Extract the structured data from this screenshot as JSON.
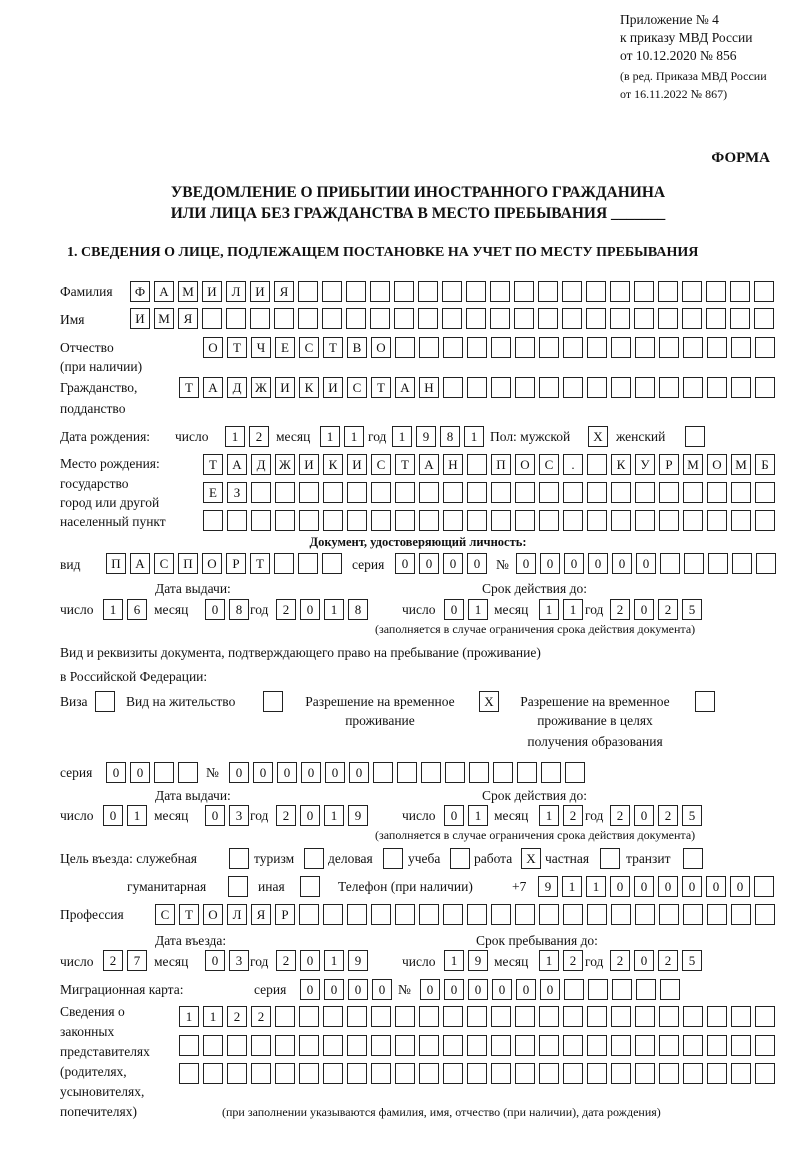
{
  "header": {
    "appendix_line1": "Приложение № 4",
    "appendix_line2": "к приказу МВД России",
    "appendix_line3": "от 10.12.2020 № 856",
    "edition_line1": "(в ред. Приказа МВД России",
    "edition_line2": "от 16.11.2022 № 867)",
    "form_label": "ФОРМА",
    "title_line1": "УВЕДОМЛЕНИЕ О ПРИБЫТИИ ИНОСТРАННОГО ГРАЖДАНИНА",
    "title_line2": "ИЛИ ЛИЦА БЕЗ ГРАЖДАНСТВА В МЕСТО ПРЕБЫВАНИЯ _______",
    "section1_title": "1. СВЕДЕНИЯ О ЛИЦЕ, ПОДЛЕЖАЩЕМ ПОСТАНОВКЕ НА УЧЕТ ПО МЕСТУ ПРЕБЫВАНИЯ"
  },
  "labels": {
    "surname": "Фамилия",
    "name": "Имя",
    "patronymic1": "Отчество",
    "patronymic2": "(при наличии)",
    "citizenship1": "Гражданство,",
    "citizenship2": "подданство",
    "birth_date": "Дата рождения:",
    "day": "число",
    "month": "месяц",
    "year": "год",
    "sex": "Пол: мужской",
    "female": "женский",
    "birthplace1": "Место рождения:",
    "birthplace2": "государство",
    "birthplace3": "город или другой",
    "birthplace4": "населенный пункт",
    "id_doc_heading": "Документ, удостоверяющий личность:",
    "kind": "вид",
    "series": "серия",
    "number": "№",
    "issue_date": "Дата выдачи:",
    "valid_until": "Срок действия до:",
    "validity_note": "(заполняется в случае ограничения срока действия документа)",
    "stay_doc1": "Вид и реквизиты документа, подтверждающего право на пребывание (проживание)",
    "stay_doc2": "в Российской Федерации:",
    "visa": "Виза",
    "residence": "Вид на жительство",
    "trp1": "Разрешение на временное",
    "trp2": "проживание",
    "trp_edu1": "Разрешение на временное",
    "trp_edu2": "проживание в целях",
    "trp_edu3": "получения образования",
    "purpose": "Цель въезда: служебная",
    "tourism": "туризм",
    "business": "деловая",
    "study": "учеба",
    "work": "работа",
    "private": "частная",
    "transit": "транзит",
    "humanitarian": "гуманитарная",
    "other": "иная",
    "phone": "Телефон (при наличии)",
    "phone_prefix": "+7",
    "profession": "Профессия",
    "entry_date": "Дата въезда:",
    "stay_until": "Срок пребывания до:",
    "migration_card": "Миграционная карта:",
    "reps1": "Сведения о",
    "reps2": "законных",
    "reps3": "представителях",
    "reps4": "(родителях,",
    "reps5": "усыновителях,",
    "reps6": "попечителях)",
    "reps_note": "(при заполнении указываются фамилия, имя, отчество (при наличии), дата рождения)"
  },
  "fields": {
    "surname": "ФАМИЛИЯ",
    "name": "ИМЯ",
    "patronymic": "ОТЧЕСТВО",
    "citizenship": "ТАДЖИКИСТАН",
    "birth_day": "12",
    "birth_month": "11",
    "birth_year": "1981",
    "sex_male": "X",
    "sex_female": "",
    "birthplace_row1": "ТАДЖИКИСТАН ПОС. КУРМОМБ",
    "birthplace_row2": "ЕЗ",
    "birthplace_row3": "",
    "id_kind": "ПАСПОРТ",
    "id_series": "0000",
    "id_number": "000000",
    "id_issue_day": "16",
    "id_issue_month": "08",
    "id_issue_year": "2018",
    "id_valid_day": "01",
    "id_valid_month": "11",
    "id_valid_year": "2025",
    "visa": "",
    "residence_permit": "",
    "temp_residence_permit": "X",
    "temp_residence_edu": "",
    "stay_series": "00",
    "stay_number": "000000",
    "stay_issue_day": "01",
    "stay_issue_month": "03",
    "stay_issue_year": "2019",
    "stay_valid_day": "01",
    "stay_valid_month": "12",
    "stay_valid_year": "2025",
    "purpose_official": "",
    "purpose_tourism": "",
    "purpose_business": "",
    "purpose_study": "",
    "purpose_work": "X",
    "purpose_private": "",
    "purpose_transit": "",
    "purpose_humanitarian": "",
    "purpose_other": "",
    "phone": "911000000",
    "profession": "СТОЛЯР",
    "entry_day": "27",
    "entry_month": "03",
    "entry_year": "2019",
    "stay_until_day": "19",
    "stay_until_month": "12",
    "stay_until_year": "2025",
    "migration_series": "0000",
    "migration_number": "000000",
    "reps_row1": "1122",
    "reps_row2": "",
    "reps_row3": ""
  }
}
